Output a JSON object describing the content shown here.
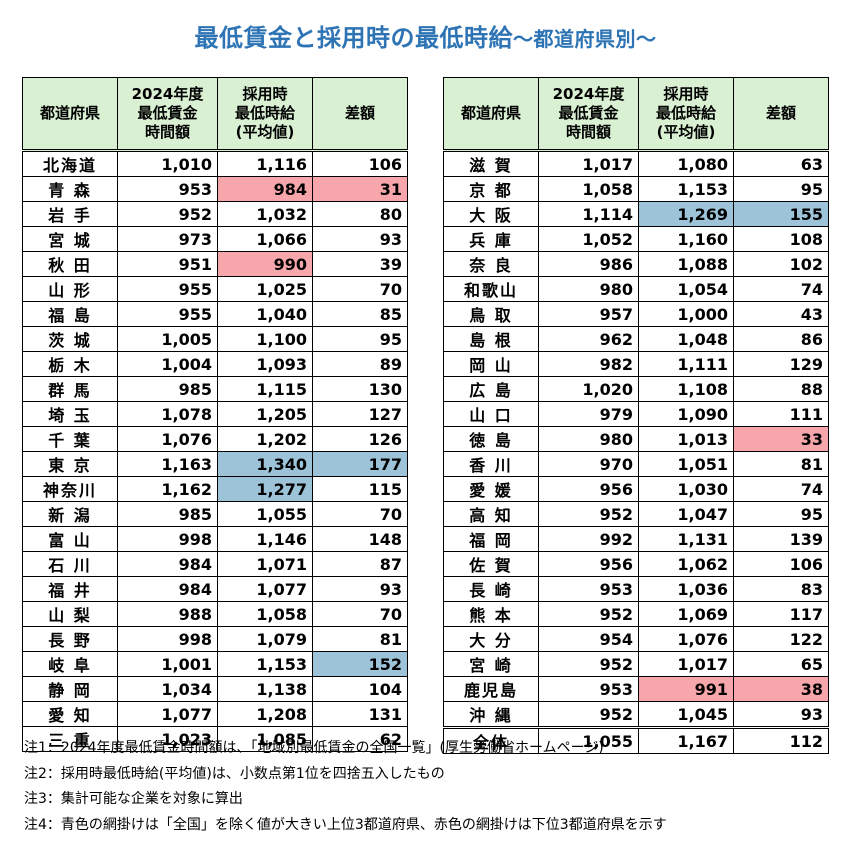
{
  "title": {
    "main": "最低賃金と採用時の最低時給",
    "sub": "～都道府県別～"
  },
  "headers": {
    "prefecture": "都道府県",
    "min_wage": [
      "2024年度",
      "最低賃金",
      "時間額"
    ],
    "hiring_wage": [
      "採用時",
      "最低時給",
      "(平均値)"
    ],
    "difference": "差額"
  },
  "colors": {
    "title": "#2E74B5",
    "header_bg": "#D9F0D3",
    "highlight_blue": "#9DC3D8",
    "highlight_red": "#F7A7AB"
  },
  "left_rows": [
    {
      "pref": "北海道",
      "min": "1,010",
      "hire": "1,116",
      "diff": "106"
    },
    {
      "pref": "青 森",
      "min": "953",
      "hire": "984",
      "diff": "31",
      "hl_hire": "red",
      "hl_diff": "red"
    },
    {
      "pref": "岩 手",
      "min": "952",
      "hire": "1,032",
      "diff": "80"
    },
    {
      "pref": "宮 城",
      "min": "973",
      "hire": "1,066",
      "diff": "93"
    },
    {
      "pref": "秋 田",
      "min": "951",
      "hire": "990",
      "diff": "39",
      "hl_hire": "red"
    },
    {
      "pref": "山 形",
      "min": "955",
      "hire": "1,025",
      "diff": "70"
    },
    {
      "pref": "福 島",
      "min": "955",
      "hire": "1,040",
      "diff": "85"
    },
    {
      "pref": "茨 城",
      "min": "1,005",
      "hire": "1,100",
      "diff": "95"
    },
    {
      "pref": "栃 木",
      "min": "1,004",
      "hire": "1,093",
      "diff": "89"
    },
    {
      "pref": "群 馬",
      "min": "985",
      "hire": "1,115",
      "diff": "130"
    },
    {
      "pref": "埼 玉",
      "min": "1,078",
      "hire": "1,205",
      "diff": "127"
    },
    {
      "pref": "千 葉",
      "min": "1,076",
      "hire": "1,202",
      "diff": "126"
    },
    {
      "pref": "東 京",
      "min": "1,163",
      "hire": "1,340",
      "diff": "177",
      "hl_hire": "blue",
      "hl_diff": "blue"
    },
    {
      "pref": "神奈川",
      "min": "1,162",
      "hire": "1,277",
      "diff": "115",
      "hl_hire": "blue"
    },
    {
      "pref": "新 潟",
      "min": "985",
      "hire": "1,055",
      "diff": "70"
    },
    {
      "pref": "富 山",
      "min": "998",
      "hire": "1,146",
      "diff": "148"
    },
    {
      "pref": "石 川",
      "min": "984",
      "hire": "1,071",
      "diff": "87"
    },
    {
      "pref": "福 井",
      "min": "984",
      "hire": "1,077",
      "diff": "93"
    },
    {
      "pref": "山 梨",
      "min": "988",
      "hire": "1,058",
      "diff": "70"
    },
    {
      "pref": "長 野",
      "min": "998",
      "hire": "1,079",
      "diff": "81"
    },
    {
      "pref": "岐 阜",
      "min": "1,001",
      "hire": "1,153",
      "diff": "152",
      "hl_diff": "blue"
    },
    {
      "pref": "静 岡",
      "min": "1,034",
      "hire": "1,138",
      "diff": "104"
    },
    {
      "pref": "愛 知",
      "min": "1,077",
      "hire": "1,208",
      "diff": "131"
    },
    {
      "pref": "三 重",
      "min": "1,023",
      "hire": "1,085",
      "diff": "62"
    }
  ],
  "right_rows": [
    {
      "pref": "滋 賀",
      "min": "1,017",
      "hire": "1,080",
      "diff": "63"
    },
    {
      "pref": "京 都",
      "min": "1,058",
      "hire": "1,153",
      "diff": "95"
    },
    {
      "pref": "大 阪",
      "min": "1,114",
      "hire": "1,269",
      "diff": "155",
      "hl_hire": "blue",
      "hl_diff": "blue"
    },
    {
      "pref": "兵 庫",
      "min": "1,052",
      "hire": "1,160",
      "diff": "108"
    },
    {
      "pref": "奈 良",
      "min": "986",
      "hire": "1,088",
      "diff": "102"
    },
    {
      "pref": "和歌山",
      "min": "980",
      "hire": "1,054",
      "diff": "74"
    },
    {
      "pref": "鳥 取",
      "min": "957",
      "hire": "1,000",
      "diff": "43"
    },
    {
      "pref": "島 根",
      "min": "962",
      "hire": "1,048",
      "diff": "86"
    },
    {
      "pref": "岡 山",
      "min": "982",
      "hire": "1,111",
      "diff": "129"
    },
    {
      "pref": "広 島",
      "min": "1,020",
      "hire": "1,108",
      "diff": "88"
    },
    {
      "pref": "山 口",
      "min": "979",
      "hire": "1,090",
      "diff": "111"
    },
    {
      "pref": "徳 島",
      "min": "980",
      "hire": "1,013",
      "diff": "33",
      "hl_diff": "red"
    },
    {
      "pref": "香 川",
      "min": "970",
      "hire": "1,051",
      "diff": "81"
    },
    {
      "pref": "愛 媛",
      "min": "956",
      "hire": "1,030",
      "diff": "74"
    },
    {
      "pref": "高 知",
      "min": "952",
      "hire": "1,047",
      "diff": "95"
    },
    {
      "pref": "福 岡",
      "min": "992",
      "hire": "1,131",
      "diff": "139"
    },
    {
      "pref": "佐 賀",
      "min": "956",
      "hire": "1,062",
      "diff": "106"
    },
    {
      "pref": "長 崎",
      "min": "953",
      "hire": "1,036",
      "diff": "83"
    },
    {
      "pref": "熊 本",
      "min": "952",
      "hire": "1,069",
      "diff": "117"
    },
    {
      "pref": "大 分",
      "min": "954",
      "hire": "1,076",
      "diff": "122"
    },
    {
      "pref": "宮 崎",
      "min": "952",
      "hire": "1,017",
      "diff": "65"
    },
    {
      "pref": "鹿児島",
      "min": "953",
      "hire": "991",
      "diff": "38",
      "hl_hire": "red",
      "hl_diff": "red"
    },
    {
      "pref": "沖 縄",
      "min": "952",
      "hire": "1,045",
      "diff": "93"
    }
  ],
  "total_row": {
    "pref": "全体",
    "min": "1,055",
    "hire": "1,167",
    "diff": "112"
  },
  "notes": [
    "注1：2024年度最低賃金時間額は、「地域別最低賃金の全国一覧」(厚生労働省ホームページ)",
    "注2：採用時最低時給(平均値)は、小数点第1位を四捨五入したもの",
    "注3：集計可能な企業を対象に算出",
    "注4：青色の網掛けは「全国」を除く値が大きい上位3都道府県、赤色の網掛けは下位3都道府県を示す"
  ]
}
